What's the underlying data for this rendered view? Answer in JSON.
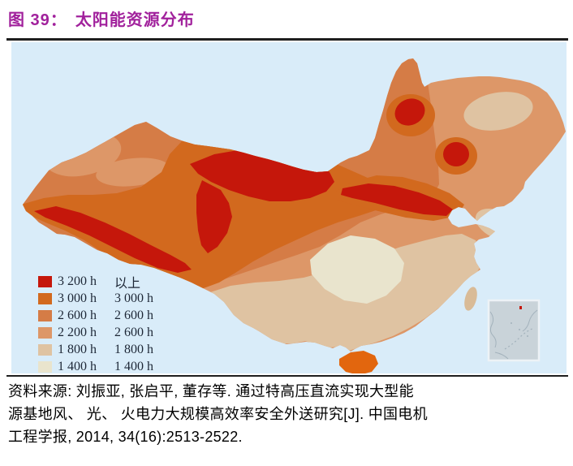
{
  "title": {
    "figure_label": "图 39：",
    "figure_title": "太阳能资源分布"
  },
  "map": {
    "legend": [
      {
        "level": "l1",
        "col1": "3 200 h",
        "col2": "以上"
      },
      {
        "level": "l2",
        "col1": "3 000 h",
        "col2": "3 000 h"
      },
      {
        "level": "l3",
        "col1": "2 600 h",
        "col2": "2 600 h"
      },
      {
        "level": "l4",
        "col1": "2 200 h",
        "col2": "2 600 h"
      },
      {
        "level": "l5",
        "col1": "1 800 h",
        "col2": "1 800 h"
      },
      {
        "level": "l6",
        "col1": "1 400 h",
        "col2": "1 400 h"
      }
    ],
    "colors": {
      "title": "#a1219c",
      "rule": "#1e1e1e",
      "legend_text": "#1d2736",
      "sea": "#d9ecf9",
      "l1": "#c5170b",
      "l2": "#d2691e",
      "l3": "#d57c46",
      "l4": "#dd9768",
      "l5": "#dfc3a2",
      "l6": "#e9e4cd",
      "hainan": "#e2660e",
      "taiwan": "#d9bb97",
      "inset_bg": "#c9d3d9",
      "inset_border": "#edf2f6",
      "inset_line": "#a3b2bc"
    }
  },
  "source": {
    "line1": "资料来源: 刘振亚, 张启平, 董存等. 通过特高压直流实现大型能",
    "line2": "源基地风、 光、 火电力大规模高效率安全外送研究[J]. 中国电机",
    "line3": "工程学报, 2014, 34(16):2513-2522."
  }
}
